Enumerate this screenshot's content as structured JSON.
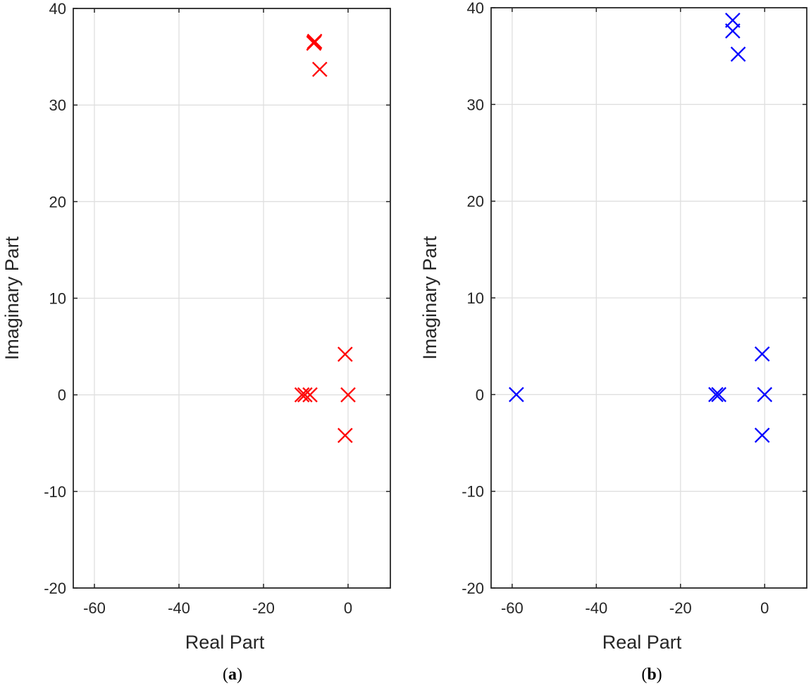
{
  "chart_data": [
    {
      "type": "scatter",
      "caption_letter": "a",
      "xlabel": "Real Part",
      "ylabel": "Imaginary Part",
      "xlim": [
        -65,
        10
      ],
      "ylim": [
        -20,
        40
      ],
      "xticks": [
        -60,
        -40,
        -20,
        0
      ],
      "yticks": [
        -20,
        -10,
        0,
        10,
        20,
        30,
        40
      ],
      "grid": true,
      "marker": "x",
      "color": "#ff0000",
      "points": [
        {
          "x": -8.0,
          "y": 36.5
        },
        {
          "x": -8.1,
          "y": 36.4
        },
        {
          "x": -7.9,
          "y": 36.6
        },
        {
          "x": -6.7,
          "y": 33.7
        },
        {
          "x": -0.7,
          "y": 4.2
        },
        {
          "x": 0.0,
          "y": 0.0
        },
        {
          "x": -0.7,
          "y": -4.2
        },
        {
          "x": -10.9,
          "y": 0.0
        },
        {
          "x": -10.2,
          "y": 0.0
        },
        {
          "x": -9.0,
          "y": 0.0
        }
      ]
    },
    {
      "type": "scatter",
      "caption_letter": "b",
      "xlabel": "Real Part",
      "ylabel": "Imaginary Part",
      "xlim": [
        -65,
        10
      ],
      "ylim": [
        -20,
        40
      ],
      "xticks": [
        -60,
        -40,
        -20,
        0
      ],
      "yticks": [
        -20,
        -10,
        0,
        10,
        20,
        30,
        40
      ],
      "grid": true,
      "marker": "x",
      "color": "#0000ff",
      "points": [
        {
          "x": -7.6,
          "y": 38.7
        },
        {
          "x": -7.6,
          "y": 37.6
        },
        {
          "x": -6.3,
          "y": 35.2
        },
        {
          "x": -59.0,
          "y": 0.0
        },
        {
          "x": -11.6,
          "y": 0.0
        },
        {
          "x": -10.9,
          "y": 0.0
        },
        {
          "x": -0.6,
          "y": 4.2
        },
        {
          "x": 0.0,
          "y": 0.0
        },
        {
          "x": -0.6,
          "y": -4.2
        }
      ]
    }
  ]
}
